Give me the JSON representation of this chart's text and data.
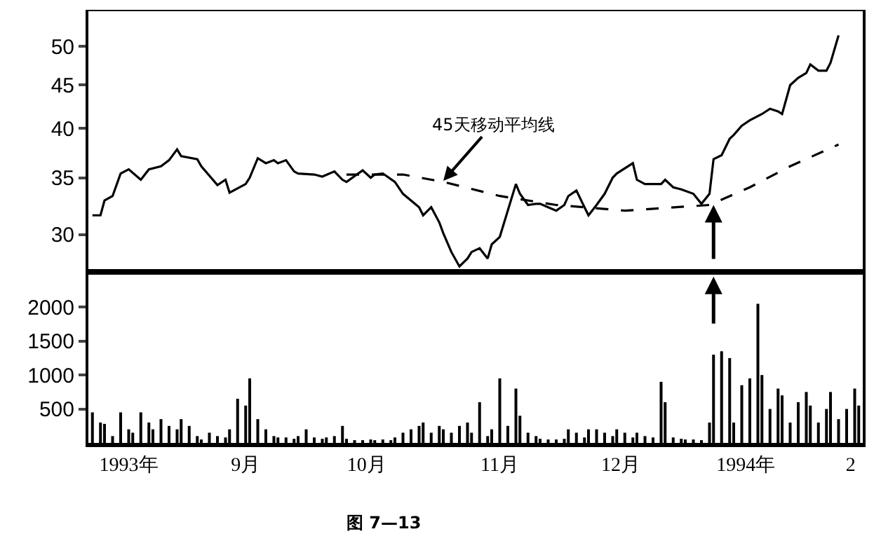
{
  "chart_data": [
    {
      "type": "line",
      "log": "y",
      "ylim": [
        27,
        55
      ],
      "yticks": [
        30,
        35,
        40,
        45,
        50
      ],
      "xlim": [
        "1993-07-28",
        "1994-02-05"
      ],
      "tick_labels": "y",
      "annotations": [
        {
          "text": "45天移动平均线",
          "x": "1993-10-24",
          "y": 34.7
        }
      ],
      "series": [
        {
          "color": "#000000",
          "line_style": "solid",
          "x": [
            "1993-07-29",
            "1993-07-31",
            "1993-08-01",
            "1993-08-03",
            "1993-08-05",
            "1993-08-07",
            "1993-08-10",
            "1993-08-12",
            "1993-08-15",
            "1993-08-17",
            "1993-08-19",
            "1993-08-20",
            "1993-08-24",
            "1993-08-25",
            "1993-08-29",
            "1993-08-31",
            "1993-09-01",
            "1993-09-05",
            "1993-09-06",
            "1993-09-08",
            "1993-09-10",
            "1993-09-12",
            "1993-09-13",
            "1993-09-15",
            "1993-09-17",
            "1993-09-18",
            "1993-09-22",
            "1993-09-24",
            "1993-09-27",
            "1993-09-29",
            "1993-09-30",
            "1993-10-04",
            "1993-10-06",
            "1993-10-07",
            "1993-10-09",
            "1993-10-12",
            "1993-10-14",
            "1993-10-18",
            "1993-10-19",
            "1993-10-21",
            "1993-10-23",
            "1993-10-24",
            "1993-10-26",
            "1993-10-28",
            "1993-10-30",
            "1993-10-31",
            "1993-11-02",
            "1993-11-04",
            "1993-11-05",
            "1993-11-07",
            "1993-11-11",
            "1993-11-12",
            "1993-11-14",
            "1993-11-16",
            "1993-11-17",
            "1993-11-19",
            "1993-11-21",
            "1993-11-23",
            "1993-11-24",
            "1993-11-26",
            "1993-11-28",
            "1993-11-29",
            "1993-12-01",
            "1993-12-03",
            "1993-12-05",
            "1993-12-06",
            "1993-12-10",
            "1993-12-11",
            "1993-12-13",
            "1993-12-17",
            "1993-12-18",
            "1993-12-20",
            "1993-12-22",
            "1993-12-25",
            "1993-12-27",
            "1993-12-29",
            "1993-12-30",
            "1994-01-01",
            "1994-01-03",
            "1994-01-04",
            "1994-01-06",
            "1994-01-08",
            "1994-01-11",
            "1994-01-13",
            "1994-01-15",
            "1994-01-16",
            "1994-01-18",
            "1994-01-20",
            "1994-01-22",
            "1994-01-23",
            "1994-01-25",
            "1994-01-27",
            "1994-01-28",
            "1994-01-30"
          ],
          "values": [
            31.6,
            31.6,
            32.9,
            33.3,
            35.4,
            35.8,
            34.8,
            35.8,
            36.1,
            36.7,
            37.8,
            37.1,
            36.8,
            36.1,
            34.3,
            34.8,
            33.6,
            34.4,
            35.0,
            36.9,
            36.4,
            36.7,
            36.4,
            36.7,
            35.6,
            35.4,
            35.3,
            35.1,
            35.6,
            34.8,
            34.6,
            35.7,
            35.0,
            35.3,
            35.4,
            34.6,
            33.5,
            32.3,
            31.6,
            32.3,
            31.0,
            30.1,
            28.6,
            27.5,
            28.1,
            28.6,
            28.9,
            28.1,
            29.2,
            29.8,
            34.4,
            33.5,
            32.5,
            32.6,
            32.6,
            32.3,
            32.0,
            32.5,
            33.3,
            33.8,
            32.3,
            31.6,
            32.5,
            33.5,
            35.0,
            35.4,
            36.4,
            34.8,
            34.4,
            34.4,
            34.8,
            34.1,
            33.9,
            33.5,
            32.6,
            33.5,
            36.8,
            37.2,
            38.9,
            39.3,
            40.3,
            40.9,
            41.6,
            42.2,
            41.9,
            41.6,
            45.0,
            45.9,
            46.5,
            47.6,
            46.8,
            46.8,
            47.8,
            51.5
          ]
        },
        {
          "color": "#000000",
          "line_style": "dashed",
          "x": [
            "1993-09-30",
            "1993-10-14",
            "1993-10-24",
            "1993-11-07",
            "1993-11-21",
            "1993-12-08",
            "1993-12-29",
            "1994-01-08",
            "1994-01-18",
            "1994-01-30"
          ],
          "values": [
            35.3,
            35.3,
            34.6,
            33.3,
            32.5,
            32.0,
            32.5,
            34.1,
            36.1,
            38.3
          ]
        }
      ]
    },
    {
      "type": "bar",
      "ylim": [
        0,
        2500
      ],
      "yticks": [
        500,
        1000,
        1500,
        2000
      ],
      "xlim": [
        "1993-07-28",
        "1994-02-05"
      ],
      "xticks": [
        {
          "value": "1993-08-07",
          "label": "1993年"
        },
        {
          "value": "1993-09-05",
          "label": "9月"
        },
        {
          "value": "1993-10-05",
          "label": "10月"
        },
        {
          "value": "1993-11-07",
          "label": "11月"
        },
        {
          "value": "1993-12-07",
          "label": "12月"
        },
        {
          "value": "1994-01-07",
          "label": "1994年"
        },
        {
          "value": "1994-02-02",
          "label": "2"
        }
      ],
      "annotations": [
        "图 7—13"
      ],
      "series": [
        {
          "color": "#000000",
          "x": [
            "1993-07-29",
            "1993-07-31",
            "1993-08-01",
            "1993-08-03",
            "1993-08-05",
            "1993-08-07",
            "1993-08-08",
            "1993-08-10",
            "1993-08-12",
            "1993-08-13",
            "1993-08-15",
            "1993-08-17",
            "1993-08-19",
            "1993-08-20",
            "1993-08-22",
            "1993-08-24",
            "1993-08-25",
            "1993-08-27",
            "1993-08-29",
            "1993-08-31",
            "1993-09-01",
            "1993-09-03",
            "1993-09-05",
            "1993-09-06",
            "1993-09-08",
            "1993-09-10",
            "1993-09-12",
            "1993-09-13",
            "1993-09-15",
            "1993-09-17",
            "1993-09-18",
            "1993-09-20",
            "1993-09-22",
            "1993-09-24",
            "1993-09-25",
            "1993-09-27",
            "1993-09-29",
            "1993-09-30",
            "1993-10-02",
            "1993-10-04",
            "1993-10-06",
            "1993-10-07",
            "1993-10-09",
            "1993-10-11",
            "1993-10-12",
            "1993-10-14",
            "1993-10-16",
            "1993-10-18",
            "1993-10-19",
            "1993-10-21",
            "1993-10-23",
            "1993-10-24",
            "1993-10-26",
            "1993-10-28",
            "1993-10-30",
            "1993-10-31",
            "1993-11-02",
            "1993-11-04",
            "1993-11-05",
            "1993-11-07",
            "1993-11-09",
            "1993-11-11",
            "1993-11-12",
            "1993-11-14",
            "1993-11-16",
            "1993-11-17",
            "1993-11-19",
            "1993-11-21",
            "1993-11-23",
            "1993-11-24",
            "1993-11-26",
            "1993-11-28",
            "1993-11-29",
            "1993-12-01",
            "1993-12-03",
            "1993-12-05",
            "1993-12-06",
            "1993-12-08",
            "1993-12-10",
            "1993-12-11",
            "1993-12-13",
            "1993-12-15",
            "1993-12-17",
            "1993-12-18",
            "1993-12-20",
            "1993-12-22",
            "1993-12-23",
            "1993-12-25",
            "1993-12-27",
            "1993-12-29",
            "1993-12-30",
            "1994-01-01",
            "1994-01-03",
            "1994-01-04",
            "1994-01-06",
            "1994-01-08",
            "1994-01-10",
            "1994-01-11",
            "1994-01-13",
            "1994-01-15",
            "1994-01-16",
            "1994-01-18",
            "1994-01-20",
            "1994-01-22",
            "1994-01-23",
            "1994-01-25",
            "1994-01-27",
            "1994-01-28",
            "1994-01-30",
            "1994-02-01",
            "1994-02-03",
            "1994-02-04"
          ],
          "values": [
            450,
            300,
            280,
            100,
            450,
            200,
            150,
            450,
            300,
            200,
            350,
            250,
            200,
            350,
            250,
            100,
            50,
            150,
            100,
            80,
            200,
            650,
            550,
            950,
            350,
            200,
            100,
            80,
            80,
            60,
            100,
            200,
            80,
            60,
            80,
            100,
            250,
            60,
            40,
            40,
            50,
            40,
            50,
            40,
            80,
            150,
            200,
            250,
            300,
            150,
            250,
            200,
            150,
            250,
            300,
            150,
            600,
            100,
            200,
            950,
            250,
            800,
            400,
            150,
            100,
            60,
            50,
            50,
            60,
            200,
            150,
            80,
            200,
            200,
            150,
            100,
            200,
            150,
            80,
            150,
            100,
            80,
            900,
            600,
            80,
            60,
            50,
            50,
            40,
            300,
            1300,
            1350,
            1250,
            300,
            850,
            950,
            2050,
            1000,
            500,
            800,
            700,
            300,
            600,
            750,
            550,
            300,
            500,
            750,
            350,
            500,
            800,
            550
          ]
        }
      ]
    }
  ]
}
